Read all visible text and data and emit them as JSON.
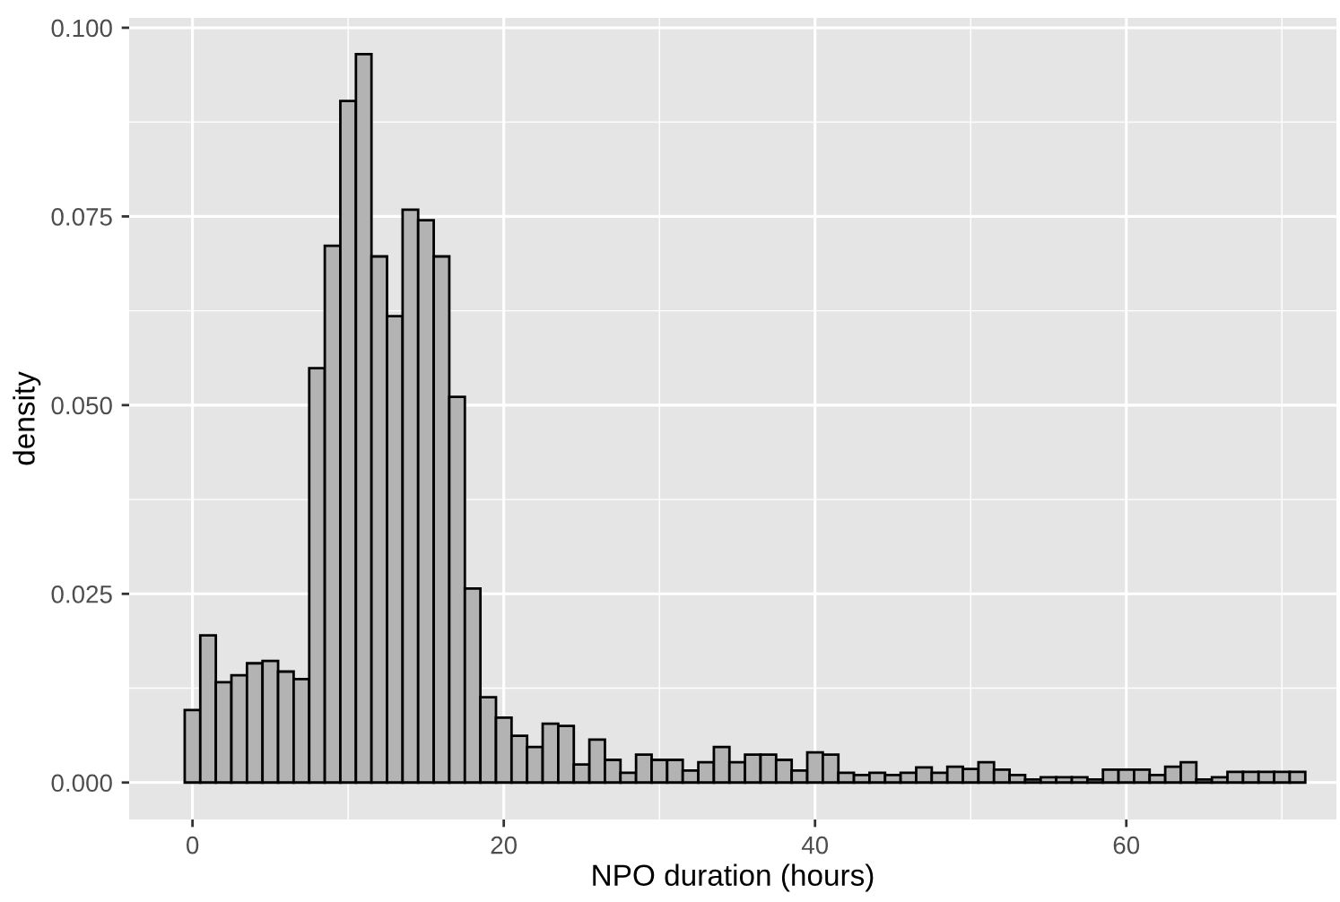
{
  "chart_data": {
    "type": "histogram",
    "xlabel": "NPO duration (hours)",
    "ylabel": "density",
    "bins": [
      -0.5,
      0.5,
      1.5,
      2.5,
      3.5,
      4.5,
      5.5,
      6.5,
      7.5,
      8.5,
      9.5,
      10.5,
      11.5,
      12.5,
      13.5,
      14.5,
      15.5,
      16.5,
      17.5,
      18.5,
      19.5,
      20.5,
      21.5,
      22.5,
      23.5,
      24.5,
      25.5,
      26.5,
      27.5,
      28.5,
      29.5,
      30.5,
      31.5,
      32.5,
      33.5,
      34.5,
      35.5,
      36.5,
      37.5,
      38.5,
      39.5,
      40.5,
      41.5,
      42.5,
      43.5,
      44.5,
      45.5,
      46.5,
      47.5,
      48.5,
      49.5,
      50.5,
      51.5,
      52.5,
      53.5,
      54.5,
      55.5,
      56.5,
      57.5,
      58.5,
      59.5,
      60.5,
      61.5,
      62.5,
      63.5,
      64.5,
      65.5,
      66.5,
      67.5,
      68.5,
      69.5,
      70.5,
      71.5
    ],
    "values": [
      0.0096,
      0.0195,
      0.0133,
      0.0142,
      0.0158,
      0.0161,
      0.0147,
      0.0137,
      0.0549,
      0.0711,
      0.0903,
      0.0965,
      0.0697,
      0.0618,
      0.0759,
      0.0745,
      0.0697,
      0.0511,
      0.0257,
      0.0113,
      0.0086,
      0.0062,
      0.0047,
      0.0078,
      0.0075,
      0.0024,
      0.0057,
      0.003,
      0.0013,
      0.0037,
      0.003,
      0.003,
      0.0016,
      0.0027,
      0.0047,
      0.0027,
      0.0037,
      0.0037,
      0.003,
      0.0016,
      0.004,
      0.0037,
      0.0013,
      0.001,
      0.0013,
      0.001,
      0.0013,
      0.002,
      0.0013,
      0.0021,
      0.0018,
      0.0027,
      0.0017,
      0.001,
      0.0004,
      0.0007,
      0.0007,
      0.0007,
      0.0004,
      0.0017,
      0.0017,
      0.0017,
      0.001,
      0.0021,
      0.0027,
      0.0004,
      0.0007,
      0.0014,
      0.0014,
      0.0014,
      0.0014,
      0.0014
    ],
    "color": "#b3b3b3",
    "xlim": [
      -4.07,
      73.5
    ],
    "ylim": [
      -0.0049,
      0.1013
    ],
    "xticks": [
      0,
      20,
      40,
      60
    ],
    "yticks": [
      {
        "value": 0,
        "label": "0.000"
      },
      {
        "value": 0.025,
        "label": "0.025"
      },
      {
        "value": 0.05,
        "label": "0.050"
      },
      {
        "value": 0.075,
        "label": "0.075"
      },
      {
        "value": 0.1,
        "label": "0.100"
      }
    ],
    "grid": true
  }
}
